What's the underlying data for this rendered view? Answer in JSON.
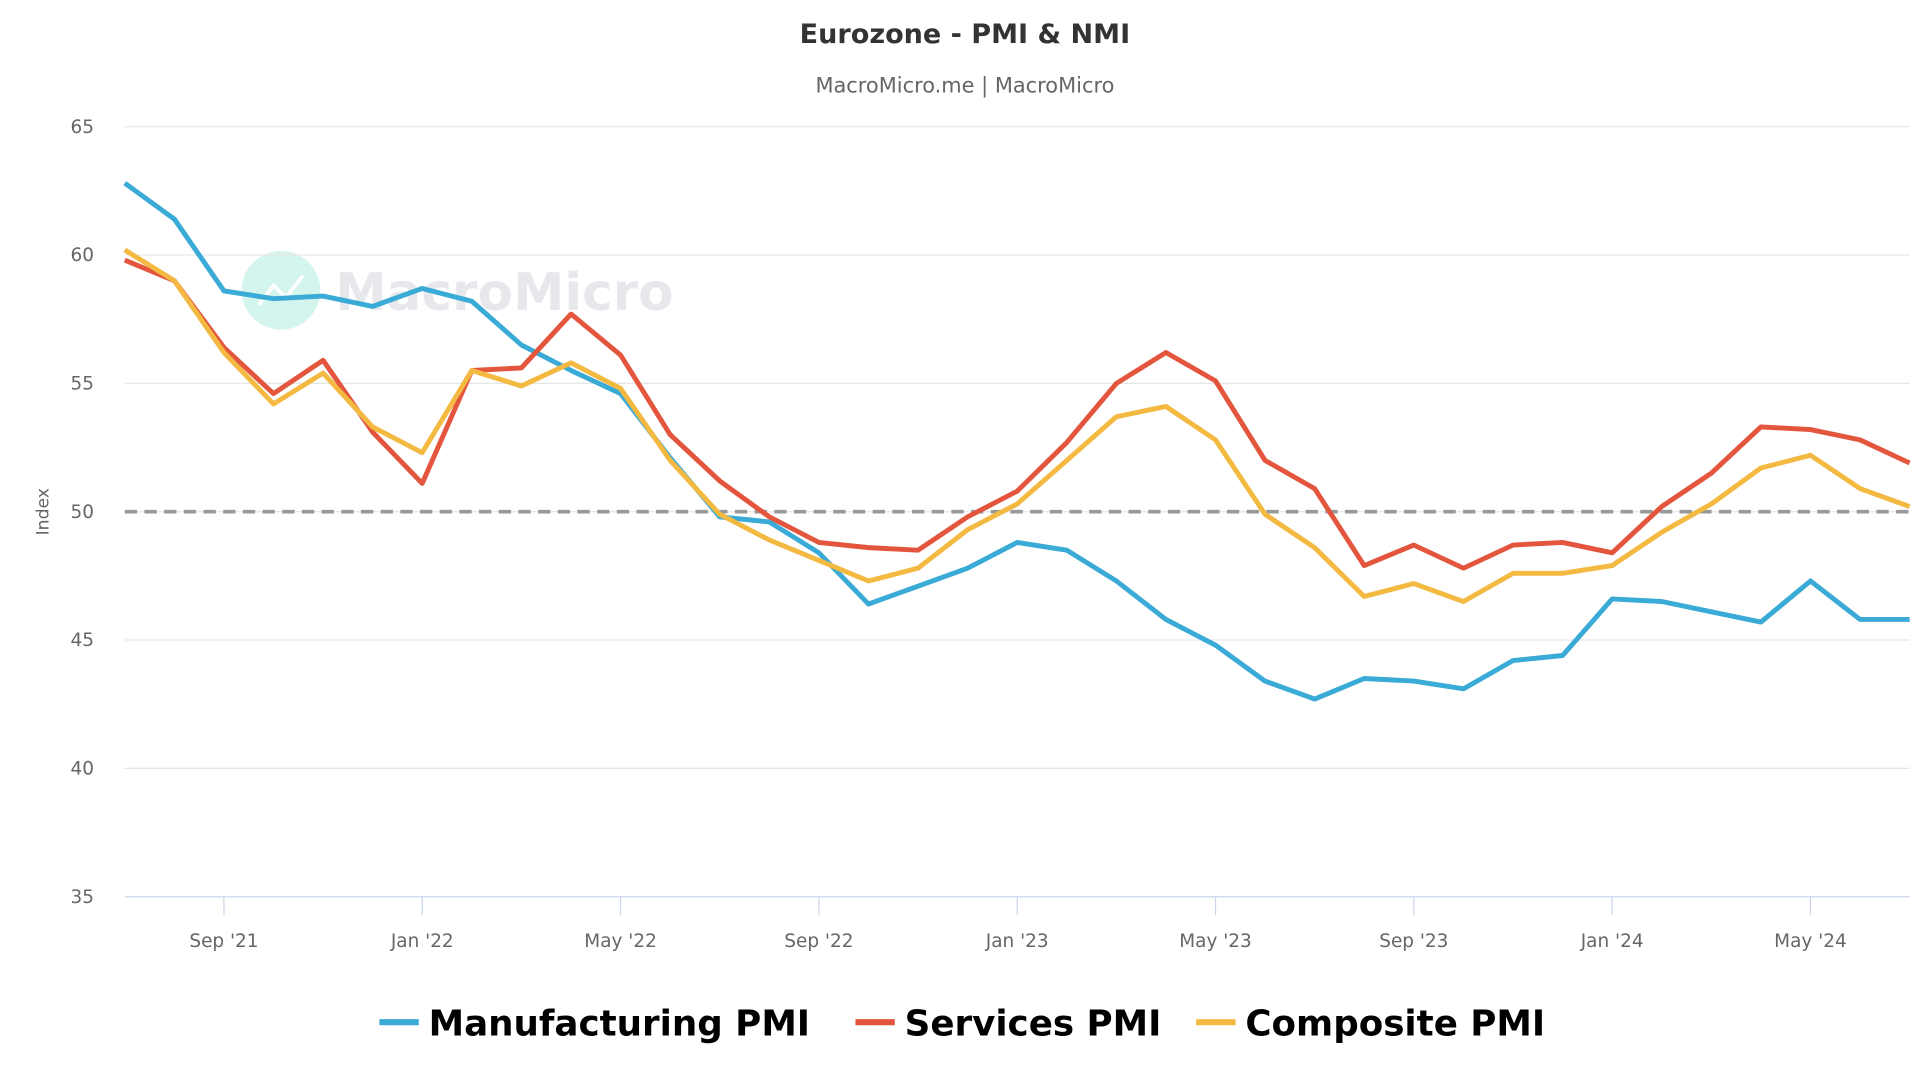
{
  "chart_data": {
    "type": "line",
    "title": "Eurozone - PMI & NMI",
    "subtitle": "MacroMicro.me | MacroMicro",
    "watermark": "MacroMicro",
    "ylabel": "Index",
    "xlabel": "",
    "ylim": [
      35,
      65
    ],
    "yticks": [
      35,
      40,
      45,
      50,
      55,
      60,
      65
    ],
    "xrange": [
      "2021-07",
      "2024-07"
    ],
    "xticks": [
      {
        "date": "2021-09",
        "label": "Sep '21"
      },
      {
        "date": "2022-01",
        "label": "Jan '22"
      },
      {
        "date": "2022-05",
        "label": "May '22"
      },
      {
        "date": "2022-09",
        "label": "Sep '22"
      },
      {
        "date": "2023-01",
        "label": "Jan '23"
      },
      {
        "date": "2023-05",
        "label": "May '23"
      },
      {
        "date": "2023-09",
        "label": "Sep '23"
      },
      {
        "date": "2024-01",
        "label": "Jan '24"
      },
      {
        "date": "2024-05",
        "label": "May '24"
      }
    ],
    "reference_line": {
      "value": 50,
      "style": "dashed",
      "color": "#999999"
    },
    "grid": true,
    "legend_position": "bottom",
    "x": [
      "2021-07",
      "2021-08",
      "2021-09",
      "2021-10",
      "2021-11",
      "2021-12",
      "2022-01",
      "2022-02",
      "2022-03",
      "2022-04",
      "2022-05",
      "2022-06",
      "2022-07",
      "2022-08",
      "2022-09",
      "2022-10",
      "2022-11",
      "2022-12",
      "2023-01",
      "2023-02",
      "2023-03",
      "2023-04",
      "2023-05",
      "2023-06",
      "2023-07",
      "2023-08",
      "2023-09",
      "2023-10",
      "2023-11",
      "2023-12",
      "2024-01",
      "2024-02",
      "2024-03",
      "2024-04",
      "2024-05",
      "2024-06",
      "2024-07"
    ],
    "series": [
      {
        "name": "Manufacturing PMI",
        "color": "#3aaad6",
        "values": [
          62.8,
          61.4,
          58.6,
          58.3,
          58.4,
          58.0,
          58.7,
          58.2,
          56.5,
          55.5,
          54.6,
          52.1,
          49.8,
          49.6,
          48.4,
          46.4,
          47.1,
          47.8,
          48.8,
          48.5,
          47.3,
          45.8,
          44.8,
          43.4,
          42.7,
          43.5,
          43.4,
          43.1,
          44.2,
          44.4,
          46.6,
          46.5,
          46.1,
          45.7,
          47.3,
          45.8,
          45.8
        ]
      },
      {
        "name": "Services PMI",
        "color": "#e4553d",
        "values": [
          59.8,
          59.0,
          56.4,
          54.6,
          55.9,
          53.1,
          51.1,
          55.5,
          55.6,
          57.7,
          56.1,
          53.0,
          51.2,
          49.8,
          48.8,
          48.6,
          48.5,
          49.8,
          50.8,
          52.7,
          55.0,
          56.2,
          55.1,
          52.0,
          50.9,
          47.9,
          48.7,
          47.8,
          48.7,
          48.8,
          48.4,
          50.2,
          51.5,
          53.3,
          53.2,
          52.8,
          51.9
        ]
      },
      {
        "name": "Composite PMI",
        "color": "#f3b941",
        "values": [
          60.2,
          59.0,
          56.2,
          54.2,
          55.4,
          53.3,
          52.3,
          55.5,
          54.9,
          55.8,
          54.8,
          52.0,
          49.9,
          48.9,
          48.1,
          47.3,
          47.8,
          49.3,
          50.3,
          52.0,
          53.7,
          54.1,
          52.8,
          49.9,
          48.6,
          46.7,
          47.2,
          46.5,
          47.6,
          47.6,
          47.9,
          49.2,
          50.3,
          51.7,
          52.2,
          50.9,
          50.2
        ]
      }
    ]
  }
}
